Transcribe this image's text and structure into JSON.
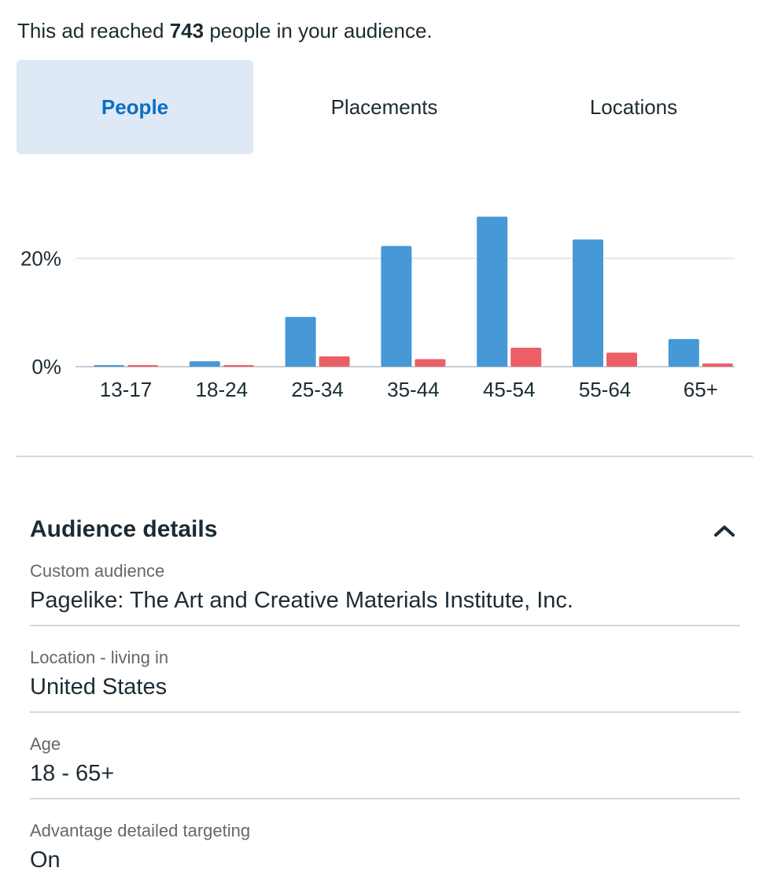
{
  "summary": {
    "prefix": "This ad reached",
    "count": "743",
    "suffix": "people in your audience."
  },
  "tabs": [
    {
      "label": "People",
      "active": true
    },
    {
      "label": "Placements",
      "active": false
    },
    {
      "label": "Locations",
      "active": false
    }
  ],
  "chart_data": {
    "type": "bar",
    "categories": [
      "13-17",
      "18-24",
      "25-34",
      "35-44",
      "45-54",
      "55-64",
      "65+"
    ],
    "series": [
      {
        "color": "#4698d6",
        "values": [
          0.2,
          1.0,
          9.2,
          22.3,
          27.7,
          23.5,
          5.1
        ]
      },
      {
        "color": "#ec5f67",
        "values": [
          0.2,
          0.2,
          1.9,
          1.4,
          3.5,
          2.6,
          0.6
        ]
      }
    ],
    "ytick_labels": [
      "0%",
      "20%"
    ],
    "yticks": [
      0,
      20
    ],
    "ylim": [
      0,
      30
    ],
    "grid": true
  },
  "details": {
    "title": "Audience details",
    "chevron_icon": "chevron-up-icon",
    "fields": [
      {
        "label": "Custom audience",
        "value": "Pagelike: The Art and Creative Materials Institute, Inc."
      },
      {
        "label": "Location - living in",
        "value": "United States"
      },
      {
        "label": "Age",
        "value": "18 - 65+"
      },
      {
        "label": "Advantage detailed targeting",
        "value": "On"
      }
    ]
  }
}
